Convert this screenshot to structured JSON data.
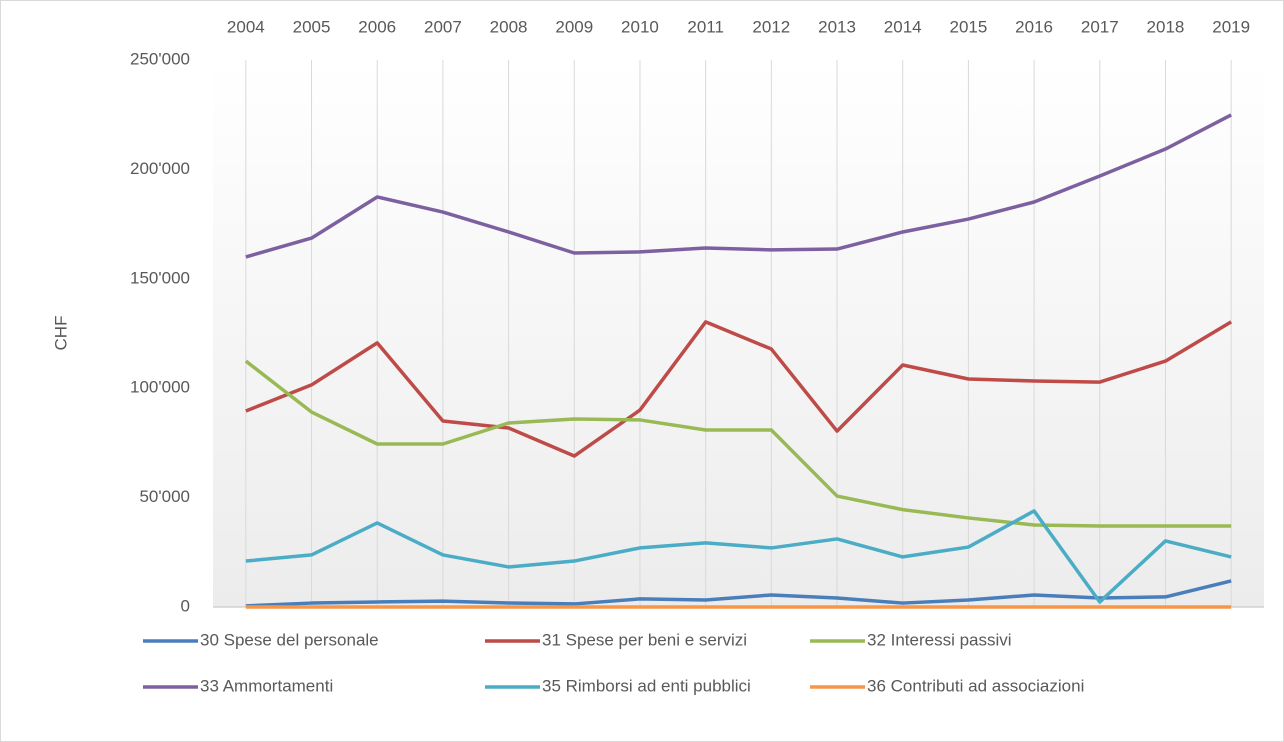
{
  "chart_data": {
    "type": "line",
    "y_label": "CHF",
    "categories": [
      "2004",
      "2005",
      "2006",
      "2007",
      "2008",
      "2009",
      "2010",
      "2011",
      "2012",
      "2013",
      "2014",
      "2015",
      "2016",
      "2017",
      "2018",
      "2019"
    ],
    "ylim": [
      0,
      250000
    ],
    "yticks": [
      0,
      {
        "value": 50000,
        "label": "50'000"
      },
      {
        "value": 100000,
        "label": "100'000"
      },
      {
        "value": 150000,
        "label": "150'000"
      },
      {
        "value": 200000,
        "label": "200'000"
      },
      {
        "value": 250000,
        "label": "250'000"
      }
    ],
    "grid": true,
    "legend": "bottom",
    "series": [
      {
        "name": "30 Spese del personale",
        "color": "#4a7ebb",
        "values": [
          500,
          1800,
          2300,
          2700,
          1800,
          1400,
          3700,
          3200,
          5500,
          4100,
          1800,
          3200,
          5500,
          4100,
          4600,
          11900
        ]
      },
      {
        "name": "31 Spese per beni e servizi",
        "color": "#be4b48",
        "values": [
          89600,
          101500,
          120700,
          85000,
          81800,
          69000,
          90000,
          130300,
          117900,
          80400,
          110600,
          104200,
          103300,
          102800,
          112400,
          130300
        ]
      },
      {
        "name": "32 Interessi passivi",
        "color": "#98b954",
        "values": [
          112400,
          89100,
          74500,
          74500,
          84100,
          85900,
          85500,
          80900,
          80900,
          50700,
          44500,
          40700,
          37500,
          37000,
          37000,
          37000
        ]
      },
      {
        "name": "33 Ammortamenti",
        "color": "#7d60a0",
        "values": [
          160000,
          168600,
          187400,
          180500,
          171400,
          161800,
          162300,
          164100,
          163200,
          163600,
          171400,
          177300,
          185100,
          197000,
          209300,
          224900
        ]
      },
      {
        "name": "35 Rimborsi ad enti pubblici",
        "color": "#4bacc6",
        "values": [
          21000,
          23800,
          38400,
          23800,
          18300,
          21000,
          27000,
          29300,
          27000,
          31100,
          22900,
          27400,
          43900,
          2300,
          30200,
          22900
        ]
      },
      {
        "name": "36 Contributi ad associazioni",
        "color": "#f79646",
        "values": [
          0,
          0,
          0,
          0,
          0,
          0,
          0,
          0,
          0,
          0,
          0,
          0,
          0,
          0,
          0,
          0
        ]
      }
    ]
  }
}
